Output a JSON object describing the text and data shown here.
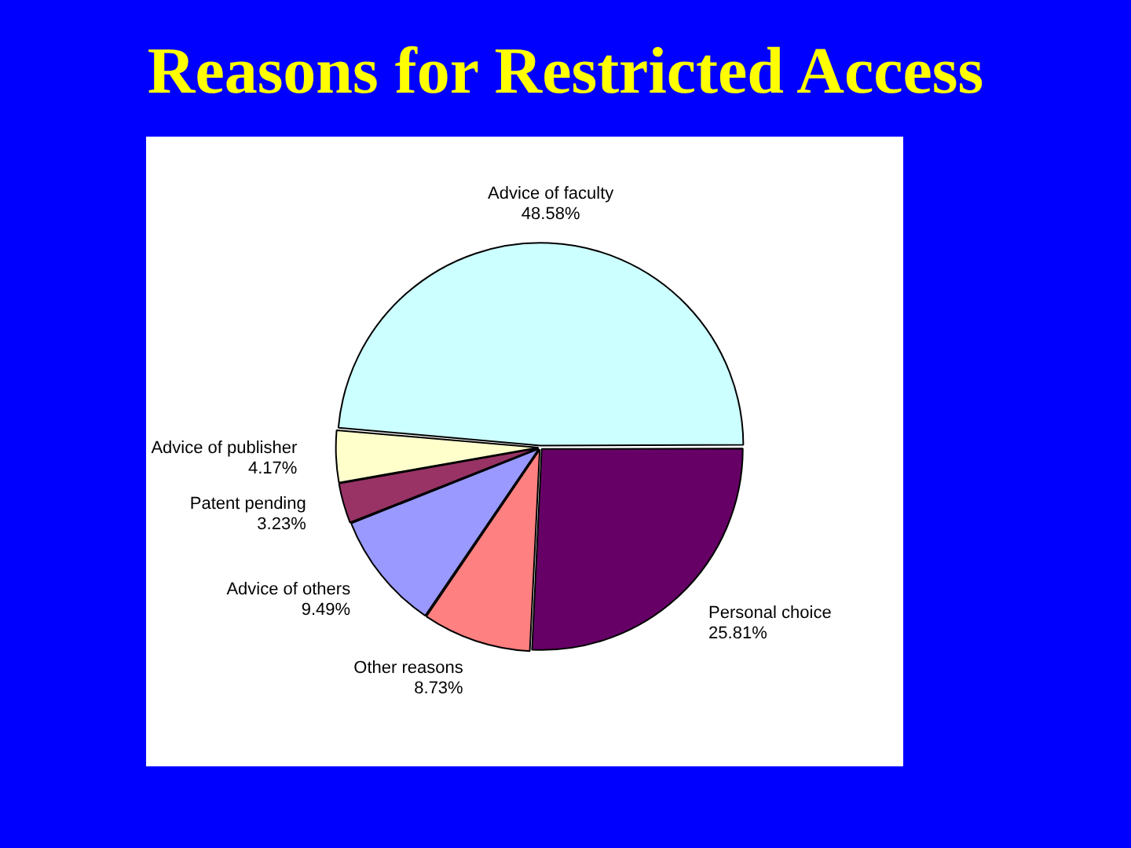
{
  "chart_data": {
    "type": "pie",
    "title": "Reasons for Restricted Access",
    "categories": [
      "Advice of faculty",
      "Personal choice",
      "Other reasons",
      "Advice of others",
      "Patent pending",
      "Advice of publisher"
    ],
    "values": [
      48.58,
      25.81,
      8.73,
      9.49,
      3.23,
      4.17
    ],
    "value_labels": [
      "48.58%",
      "25.81%",
      "8.73%",
      "9.49%",
      "3.23%",
      "4.17%"
    ],
    "colors": [
      "#ccffff",
      "#660066",
      "#ff8080",
      "#9999ff",
      "#993366",
      "#ffffcc"
    ],
    "legend": false
  }
}
